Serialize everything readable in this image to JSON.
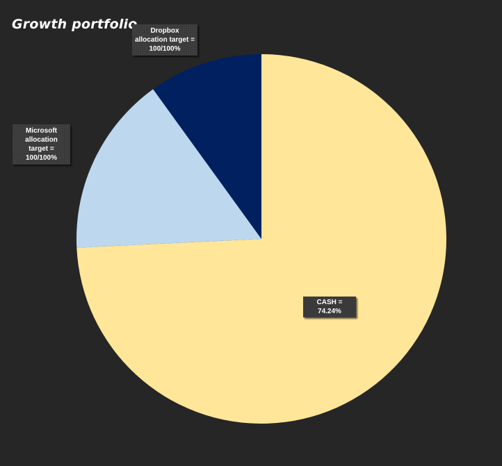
{
  "chart_data": {
    "type": "pie",
    "title": "Growth portfolio",
    "start_angle_deg": 0,
    "direction": "clockwise",
    "slices": [
      {
        "name": "CASH",
        "value": 74.24,
        "color": "#FFE699",
        "label": "CASH = 74.24%"
      },
      {
        "name": "Microsoft",
        "value": 15.8,
        "color": "#BDD7EE",
        "label": "Microsoft allocation target = 100/100%"
      },
      {
        "name": "Dropbox",
        "value": 9.96,
        "color": "#002060",
        "label": "Dropbox allocation target = 100/100%"
      }
    ],
    "legend": "none"
  }
}
